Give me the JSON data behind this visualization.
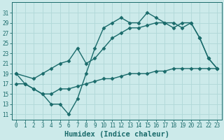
{
  "background_color": "#cceaea",
  "grid_color": "#b0d8d8",
  "line_color": "#1a6b6b",
  "xlabel": "Humidex (Indice chaleur)",
  "ylim": [
    10,
    33
  ],
  "xlim": [
    -0.5,
    23.5
  ],
  "yticks": [
    11,
    13,
    15,
    17,
    19,
    21,
    23,
    25,
    27,
    29,
    31
  ],
  "xticks": [
    0,
    1,
    2,
    3,
    4,
    5,
    6,
    7,
    8,
    9,
    10,
    11,
    12,
    13,
    14,
    15,
    16,
    17,
    18,
    19,
    20,
    21,
    22,
    23
  ],
  "curve1_x": [
    0,
    1,
    2,
    3,
    4,
    5,
    6,
    7,
    8,
    9,
    10,
    11,
    12,
    13,
    14,
    15,
    16,
    17,
    18,
    19,
    20,
    21,
    22,
    23
  ],
  "curve1_y": [
    19,
    17,
    16,
    15,
    13,
    13,
    11,
    14,
    19,
    24,
    28,
    29,
    30,
    29,
    29,
    31,
    30,
    29,
    29,
    28,
    29,
    26,
    22,
    20
  ],
  "curve2_x": [
    0,
    1,
    2,
    3,
    4,
    5,
    6,
    7,
    8,
    9,
    10,
    11,
    12,
    13,
    14,
    15,
    16,
    17,
    18,
    19,
    20,
    21,
    22,
    23
  ],
  "curve2_y": [
    17,
    17,
    16,
    15,
    15,
    16,
    16,
    16.5,
    17,
    17.5,
    18,
    18,
    18.5,
    19,
    19,
    19,
    19.5,
    19.5,
    20,
    20,
    20,
    20,
    20,
    20
  ],
  "curve3_x": [
    0,
    2,
    3,
    4,
    5,
    6,
    7,
    8,
    9,
    10,
    11,
    12,
    13,
    14,
    15,
    16,
    17,
    18,
    19,
    20,
    21,
    22,
    23
  ],
  "curve3_y": [
    19,
    18,
    19,
    20,
    21,
    21.5,
    24,
    21,
    22,
    24,
    26,
    27,
    28,
    28,
    28.5,
    29,
    29,
    28,
    29,
    29,
    26,
    22,
    20
  ],
  "marker": "D",
  "markersize": 2.5,
  "linewidth": 1.0,
  "tick_fontsize": 5.5,
  "xlabel_fontsize": 7.5
}
